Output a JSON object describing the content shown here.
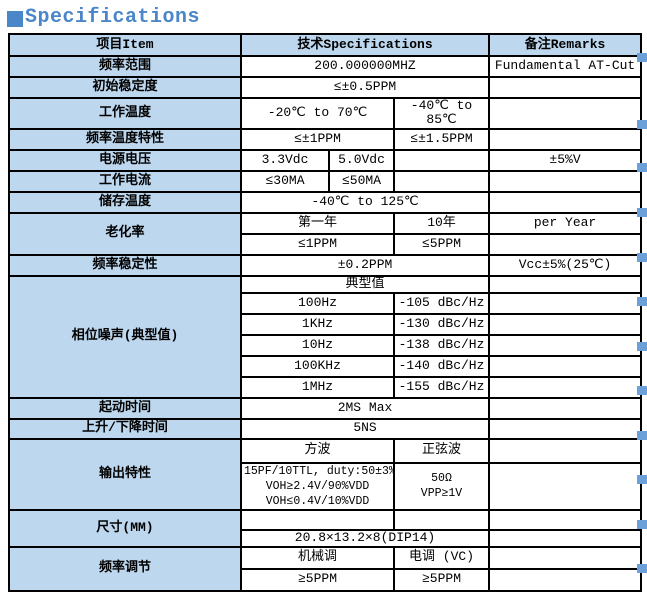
{
  "title": {
    "marker": "■",
    "text": "Specifications"
  },
  "colors": {
    "accent_blue": "#4a86c8",
    "cell_blue": "#bdd7ee",
    "edge_mark_blue": "#6ca0d8",
    "border": "#000000"
  },
  "edge_markers": [
    53,
    120,
    163,
    208,
    253,
    297,
    342,
    386,
    431,
    475,
    520,
    564
  ],
  "table": {
    "header": {
      "item": "项目Item",
      "spec": "技术Specifications",
      "remark": "备注Remarks"
    },
    "rows": {
      "freq_range": {
        "label": "频率范围",
        "value": "200.000000MHZ",
        "remark": "Fundamental AT-Cut"
      },
      "initial_stability": {
        "label": "初始稳定度",
        "value": "≤±0.5PPM",
        "remark": ""
      },
      "operating_temp": {
        "label": "工作温度",
        "value1": "-20℃ to 70℃",
        "value2": "-40℃ to 85℃",
        "remark": ""
      },
      "freq_temp_char": {
        "label": "频率温度特性",
        "value1": "≤±1PPM",
        "value2": "≤±1.5PPM",
        "remark": ""
      },
      "supply_voltage": {
        "label": "电源电压",
        "value1": "3.3Vdc",
        "value2": "5.0Vdc",
        "value3": "",
        "remark": "±5%V"
      },
      "supply_current": {
        "label": "工作电流",
        "value1": "≤30MA",
        "value2": "≤50MA",
        "value3": "",
        "remark": ""
      },
      "storage_temp": {
        "label": "储存温度",
        "value": "-40℃ to 125℃",
        "remark": ""
      },
      "aging": {
        "label": "老化率",
        "col1_header": "第一年",
        "col2_header": "10年",
        "col1_value": "≤1PPM",
        "col2_value": "≤5PPM",
        "remark": "per Year",
        "remark2": ""
      },
      "freq_stability": {
        "label": "频率稳定性",
        "value": "±0.2PPM",
        "remark": "Vcc±5%(25℃)"
      },
      "phase_noise": {
        "label": "相位噪声(典型值)",
        "header": "典型值",
        "header_remark": "",
        "points": [
          {
            "freq": "100Hz",
            "value": "-105 dBc/Hz",
            "remark": ""
          },
          {
            "freq": "1KHz",
            "value": "-130 dBc/Hz",
            "remark": ""
          },
          {
            "freq": "10Hz",
            "value": "-138 dBc/Hz",
            "remark": ""
          },
          {
            "freq": "100KHz",
            "value": "-140 dBc/Hz",
            "remark": ""
          },
          {
            "freq": "1MHz",
            "value": "-155 dBc/Hz",
            "remark": ""
          }
        ]
      },
      "startup_time": {
        "label": "起动时间",
        "value": "2MS Max",
        "remark": ""
      },
      "rise_fall_time": {
        "label": "上升/下降时间",
        "value": "5NS",
        "remark": ""
      },
      "output": {
        "label": "输出特性",
        "col1_header": "方波",
        "col2_header": "正弦波",
        "header_remark": "",
        "col1_line1": "15PF/10TTL, duty:50±3%",
        "col1_line2": "VOH≥2.4V/90%VDD",
        "col1_line3": "VOH≤0.4V/10%VDD",
        "col2_line1": "50Ω",
        "col2_line2": "VPP≥1V",
        "remark": ""
      },
      "dimensions": {
        "label": "尺寸(MM)",
        "empty1": "",
        "empty2": "",
        "value": "20.8×13.2×8(DIP14)",
        "remark1": "",
        "remark2": ""
      },
      "freq_adjust": {
        "label": "频率调节",
        "col1_header": "机械调",
        "col2_header": "电调 (VC)",
        "col1_value": "≥5PPM",
        "col2_value": "≥5PPM",
        "remark1": "",
        "remark2": ""
      }
    }
  }
}
